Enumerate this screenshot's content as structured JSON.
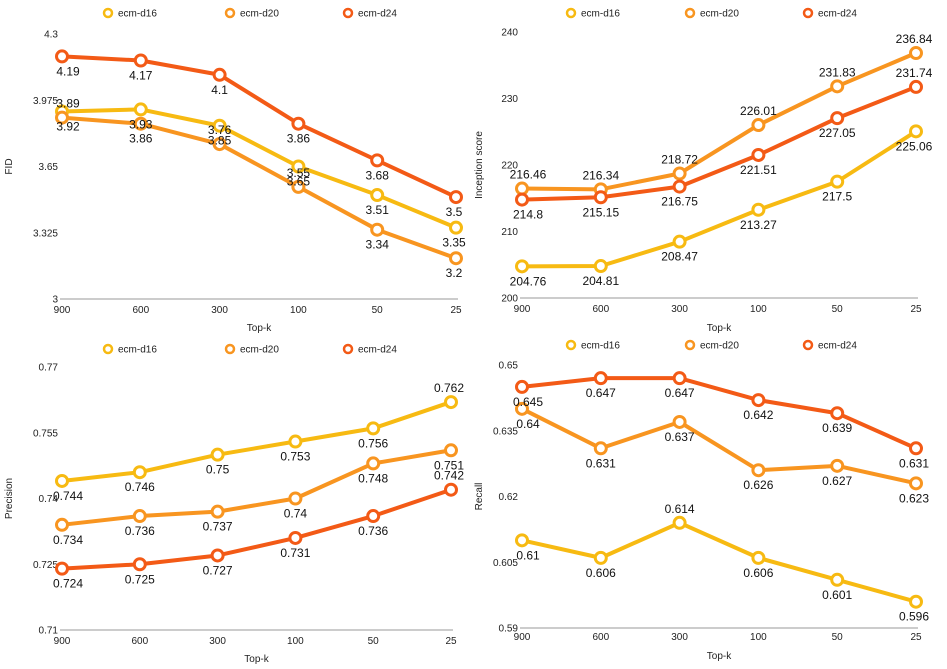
{
  "series_colors": {
    "ecm-d16": "#F7BA12",
    "ecm-d20": "#F89520",
    "ecm-d24": "#F35A16"
  },
  "chart_data": [
    {
      "type": "line",
      "categories": [
        "900",
        "600",
        "300",
        "100",
        "50",
        "25"
      ],
      "xlabel": "Top-k",
      "ylabel": "FID",
      "ylim": [
        3,
        4.3
      ],
      "yticks": [
        "3",
        "3.325",
        "3.65",
        "3.975",
        "4.3"
      ],
      "legend_position": "top",
      "series": [
        {
          "name": "ecm-d16",
          "values": [
            3.92,
            3.93,
            3.85,
            3.65,
            3.51,
            3.35
          ],
          "labels": [
            "3.92",
            "3.93",
            "3.85",
            "3.65",
            "3.51",
            "3.35"
          ]
        },
        {
          "name": "ecm-d20",
          "values": [
            3.89,
            3.86,
            3.76,
            3.55,
            3.34,
            3.2
          ],
          "labels": [
            "3.89",
            "3.86",
            "3.76",
            "3.55",
            "3.34",
            "3.2"
          ]
        },
        {
          "name": "ecm-d24",
          "values": [
            4.19,
            4.17,
            4.1,
            3.86,
            3.68,
            3.5
          ],
          "labels": [
            "4.19",
            "4.17",
            "4.1",
            "3.86",
            "3.68",
            "3.5"
          ]
        }
      ]
    },
    {
      "type": "line",
      "categories": [
        "900",
        "600",
        "300",
        "100",
        "50",
        "25"
      ],
      "xlabel": "Top-k",
      "ylabel": "Inception score",
      "ylim": [
        200,
        240
      ],
      "yticks": [
        "200",
        "210",
        "220",
        "230",
        "240"
      ],
      "legend_position": "top",
      "series": [
        {
          "name": "ecm-d16",
          "values": [
            204.76,
            204.81,
            208.47,
            213.27,
            217.5,
            225.06
          ],
          "labels": [
            "204.76",
            "204.81",
            "208.47",
            "213.27",
            "217.5",
            "225.06"
          ]
        },
        {
          "name": "ecm-d20",
          "values": [
            216.46,
            216.34,
            218.72,
            226.01,
            231.83,
            236.84
          ],
          "labels": [
            "216.46",
            "216.34",
            "218.72",
            "226.01",
            "231.83",
            "236.84"
          ]
        },
        {
          "name": "ecm-d24",
          "values": [
            214.8,
            215.15,
            216.75,
            221.51,
            227.05,
            231.74
          ],
          "labels": [
            "214.8",
            "215.15",
            "216.75",
            "221.51",
            "227.05",
            "231.74"
          ]
        }
      ]
    },
    {
      "type": "line",
      "categories": [
        "900",
        "600",
        "300",
        "100",
        "50",
        "25"
      ],
      "xlabel": "Top-k",
      "ylabel": "Precision",
      "ylim": [
        0.71,
        0.77
      ],
      "yticks": [
        "0.71",
        "0.725",
        "0.74",
        "0.755",
        "0.77"
      ],
      "legend_position": "top",
      "series": [
        {
          "name": "ecm-d16",
          "values": [
            0.744,
            0.746,
            0.75,
            0.753,
            0.756,
            0.762
          ],
          "labels": [
            "0.744",
            "0.746",
            "0.75",
            "0.753",
            "0.756",
            "0.762"
          ]
        },
        {
          "name": "ecm-d20",
          "values": [
            0.734,
            0.736,
            0.737,
            0.74,
            0.748,
            0.751
          ],
          "labels": [
            "0.734",
            "0.736",
            "0.737",
            "0.74",
            "0.748",
            "0.751"
          ]
        },
        {
          "name": "ecm-d24",
          "values": [
            0.724,
            0.725,
            0.727,
            0.731,
            0.736,
            0.742
          ],
          "labels": [
            "0.724",
            "0.725",
            "0.727",
            "0.731",
            "0.736",
            "0.742"
          ]
        }
      ]
    },
    {
      "type": "line",
      "categories": [
        "900",
        "600",
        "300",
        "100",
        "50",
        "25"
      ],
      "xlabel": "Top-k",
      "ylabel": "Recall",
      "ylim": [
        0.59,
        0.65
      ],
      "yticks": [
        "0.59",
        "0.605",
        "0.62",
        "0.635",
        "0.65"
      ],
      "legend_position": "top",
      "series": [
        {
          "name": "ecm-d16",
          "values": [
            0.61,
            0.606,
            0.614,
            0.606,
            0.601,
            0.596
          ],
          "labels": [
            "0.61",
            "0.606",
            "0.614",
            "0.606",
            "0.601",
            "0.596"
          ]
        },
        {
          "name": "ecm-d20",
          "values": [
            0.64,
            0.631,
            0.637,
            0.626,
            0.627,
            0.623
          ],
          "labels": [
            "0.64",
            "0.631",
            "0.637",
            "0.626",
            "0.627",
            "0.623"
          ]
        },
        {
          "name": "ecm-d24",
          "values": [
            0.645,
            0.647,
            0.647,
            0.642,
            0.639,
            0.631
          ],
          "labels": [
            "0.645",
            "0.647",
            "0.647",
            "0.642",
            "0.639",
            "0.631"
          ]
        }
      ]
    }
  ]
}
